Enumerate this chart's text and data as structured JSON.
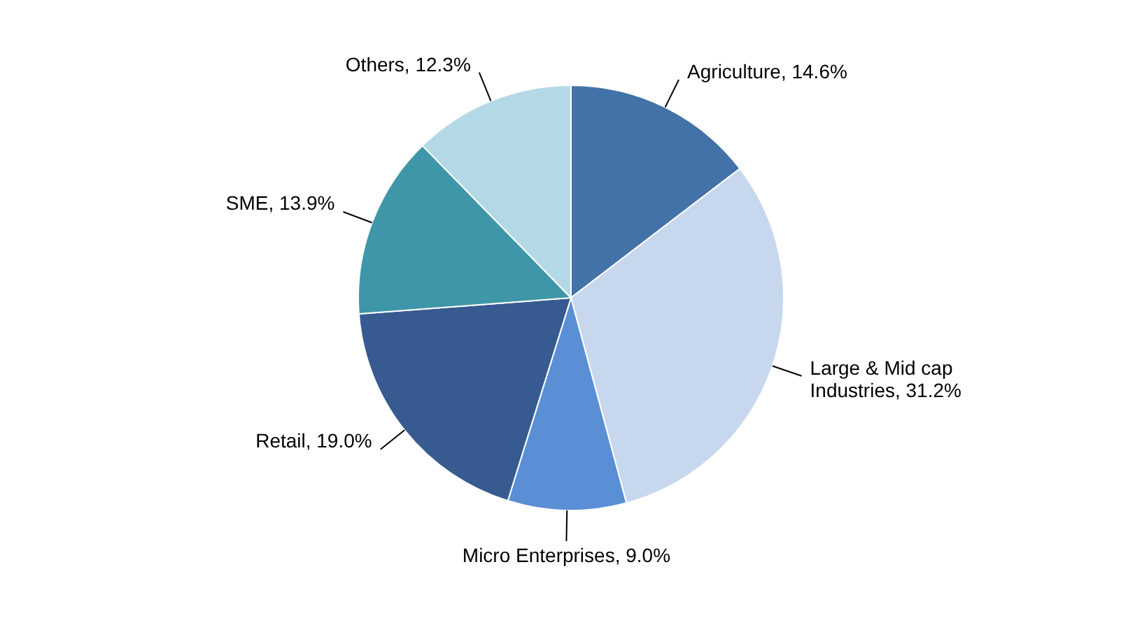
{
  "chart_data": {
    "type": "pie",
    "categories": [
      "Agriculture",
      "Large & Mid cap Industries",
      "Micro Enterprises",
      "Retail",
      "SME",
      "Others"
    ],
    "values": [
      14.6,
      31.2,
      9.0,
      19.0,
      13.9,
      12.3
    ],
    "value_labels": [
      "14.6%",
      "31.2%",
      "9.0%",
      "19.0%",
      "13.9%",
      "12.3%"
    ],
    "colors": [
      "#4272a8",
      "#c6d7ee",
      "#5a8fd6",
      "#375b90",
      "#3f96a8",
      "#b3d9e6"
    ]
  }
}
